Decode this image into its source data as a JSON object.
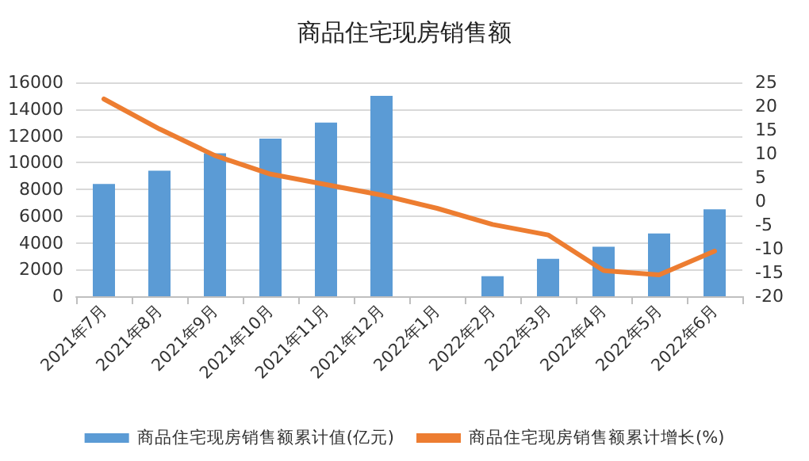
{
  "chart_data": {
    "type": "bar",
    "title": "商品住宅现房销售额",
    "categories": [
      "2021年7月",
      "2021年8月",
      "2021年9月",
      "2021年10月",
      "2021年11月",
      "2021年12月",
      "2022年1月",
      "2022年2月",
      "2022年3月",
      "2022年4月",
      "2022年5月",
      "2022年6月"
    ],
    "series": [
      {
        "name": "商品住宅现房销售额累计值(亿元)",
        "color": "#5b9bd5",
        "values": [
          8400,
          9400,
          10700,
          11800,
          13000,
          15000,
          null,
          1500,
          2800,
          3700,
          4700,
          6500
        ]
      },
      {
        "name": "商品住宅现房销售额累计增长(%)",
        "type": "line",
        "axis": "y2",
        "color": "#ed7d31",
        "values": [
          21.5,
          15.2,
          9.6,
          5.7,
          3.5,
          1.3,
          -1.5,
          -4.9,
          -7.1,
          -14.6,
          -15.5,
          -10.5
        ]
      }
    ],
    "ylim": [
      0,
      16000
    ],
    "yticks": [
      0,
      2000,
      4000,
      6000,
      8000,
      10000,
      12000,
      14000,
      16000
    ],
    "y2lim": [
      -20,
      25
    ],
    "y2ticks": [
      -20,
      -15,
      -10,
      -5,
      0,
      5,
      10,
      15,
      20,
      25
    ],
    "grid": "y",
    "legend": "bottom",
    "marker": "none"
  }
}
